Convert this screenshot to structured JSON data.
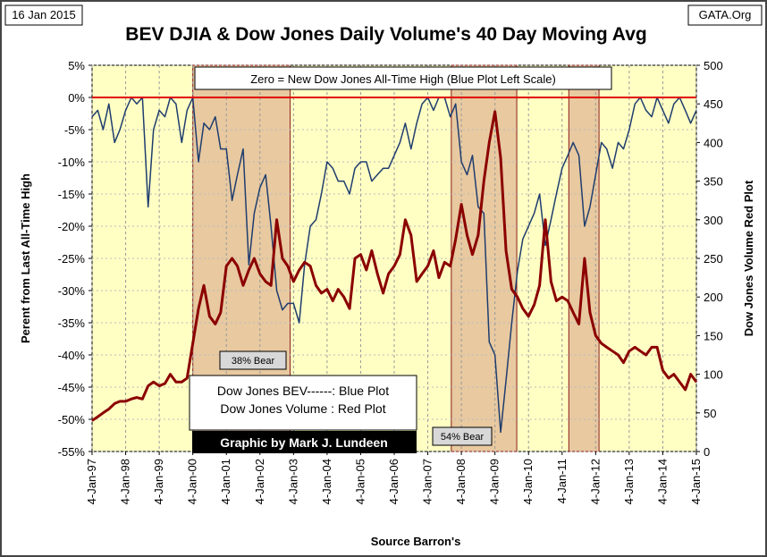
{
  "chart_data": {
    "type": "line",
    "title": "BEV DJIA & Dow Jones Daily Volume's 40 Day Moving Avg",
    "date": "16 Jan 2015",
    "source_tag": "GATA.Org",
    "y_label": "Perent from Last All-Time High",
    "y2_label": "Dow Jones Volume  Red Plot",
    "x_label": "Source Barron's",
    "annotations": {
      "zero_note": "Zero = New Dow Jones  All-Time High (Blue Plot Left Scale)",
      "legend_blue": "Dow Jones BEV------: Blue Plot",
      "legend_red": "Dow Jones Volume : Red Plot",
      "credit": "Graphic by Mark J. Lundeen"
    },
    "bear_periods": [
      {
        "start": 2000.0,
        "end": 2002.9,
        "label": "38% Bear"
      },
      {
        "start": 2007.7,
        "end": 2009.65,
        "label": "54% Bear"
      },
      {
        "start": 2011.2,
        "end": 2012.1
      }
    ],
    "reference_line": {
      "value": 0,
      "color": "#e00000"
    },
    "grid": true,
    "xlim": [
      1997,
      2015
    ],
    "xticks": [
      {
        "value": 1997,
        "label": "4-Jan-97"
      },
      {
        "value": 1998,
        "label": "4-Jan-98"
      },
      {
        "value": 1999,
        "label": "4-Jan-99"
      },
      {
        "value": 2000,
        "label": "4-Jan-00"
      },
      {
        "value": 2001,
        "label": "4-Jan-01"
      },
      {
        "value": 2002,
        "label": "4-Jan-02"
      },
      {
        "value": 2003,
        "label": "4-Jan-03"
      },
      {
        "value": 2004,
        "label": "4-Jan-04"
      },
      {
        "value": 2005,
        "label": "4-Jan-05"
      },
      {
        "value": 2006,
        "label": "4-Jan-06"
      },
      {
        "value": 2007,
        "label": "4-Jan-07"
      },
      {
        "value": 2008,
        "label": "4-Jan-08"
      },
      {
        "value": 2009,
        "label": "4-Jan-09"
      },
      {
        "value": 2010,
        "label": "4-Jan-10"
      },
      {
        "value": 2011,
        "label": "4-Jan-11"
      },
      {
        "value": 2012,
        "label": "4-Jan-12"
      },
      {
        "value": 2013,
        "label": "4-Jan-13"
      },
      {
        "value": 2014,
        "label": "4-Jan-14"
      },
      {
        "value": 2015,
        "label": "4-Jan-15"
      }
    ],
    "ylim": [
      5,
      -55
    ],
    "yticks": [
      {
        "value": 5,
        "label": "5%"
      },
      {
        "value": 0,
        "label": "0%"
      },
      {
        "value": -5,
        "label": "-5%"
      },
      {
        "value": -10,
        "label": "-10%"
      },
      {
        "value": -15,
        "label": "-15%"
      },
      {
        "value": -20,
        "label": "-20%"
      },
      {
        "value": -25,
        "label": "-25%"
      },
      {
        "value": -30,
        "label": "-30%"
      },
      {
        "value": -35,
        "label": "-35%"
      },
      {
        "value": -40,
        "label": "-40%"
      },
      {
        "value": -45,
        "label": "-45%"
      },
      {
        "value": -50,
        "label": "-50%"
      },
      {
        "value": -55,
        "label": "-55%"
      }
    ],
    "y2lim": [
      500,
      0
    ],
    "y2ticks": [
      500,
      450,
      400,
      350,
      300,
      250,
      200,
      150,
      100,
      50,
      0
    ],
    "x": [
      1997,
      1997.17,
      1997.33,
      1997.5,
      1997.67,
      1997.83,
      1998,
      1998.17,
      1998.33,
      1998.5,
      1998.67,
      1998.83,
      1999,
      1999.17,
      1999.33,
      1999.5,
      1999.67,
      1999.83,
      2000,
      2000.17,
      2000.33,
      2000.5,
      2000.67,
      2000.83,
      2001,
      2001.17,
      2001.33,
      2001.5,
      2001.67,
      2001.83,
      2002,
      2002.17,
      2002.33,
      2002.5,
      2002.67,
      2002.83,
      2003,
      2003.17,
      2003.33,
      2003.5,
      2003.67,
      2003.83,
      2004,
      2004.17,
      2004.33,
      2004.5,
      2004.67,
      2004.83,
      2005,
      2005.17,
      2005.33,
      2005.5,
      2005.67,
      2005.83,
      2006,
      2006.17,
      2006.33,
      2006.5,
      2006.67,
      2006.83,
      2007,
      2007.17,
      2007.33,
      2007.5,
      2007.67,
      2007.83,
      2008,
      2008.17,
      2008.33,
      2008.5,
      2008.67,
      2008.83,
      2009,
      2009.17,
      2009.33,
      2009.5,
      2009.67,
      2009.83,
      2010,
      2010.17,
      2010.33,
      2010.5,
      2010.67,
      2010.83,
      2011,
      2011.17,
      2011.33,
      2011.5,
      2011.67,
      2011.83,
      2012,
      2012.17,
      2012.33,
      2012.5,
      2012.67,
      2012.83,
      2013,
      2013.17,
      2013.33,
      2013.5,
      2013.67,
      2013.83,
      2014,
      2014.17,
      2014.33,
      2014.5,
      2014.67,
      2014.83,
      2015
    ],
    "series": [
      {
        "name": "Dow Jones BEV",
        "color": "#1f3d6e",
        "axis": "y",
        "values": [
          -3,
          -2,
          -5,
          -1,
          -7,
          -5,
          -2,
          0,
          -1,
          0,
          -17,
          -5,
          -2,
          -3,
          0,
          -1,
          -7,
          -2,
          0,
          -10,
          -4,
          -5,
          -3,
          -8,
          -8,
          -16,
          -12,
          -8,
          -26,
          -18,
          -14,
          -12,
          -20,
          -30,
          -33,
          -32,
          -32,
          -35,
          -26,
          -20,
          -19,
          -15,
          -10,
          -11,
          -13,
          -13,
          -15,
          -11,
          -10,
          -10,
          -13,
          -12,
          -11,
          -11,
          -9,
          -7,
          -4,
          -8,
          -4,
          -1,
          0,
          -2,
          0,
          0,
          -3,
          -1,
          -10,
          -12,
          -9,
          -17,
          -18,
          -38,
          -40,
          -52,
          -44,
          -35,
          -27,
          -22,
          -20,
          -18,
          -15,
          -23,
          -19,
          -15,
          -11,
          -9,
          -7,
          -9,
          -20,
          -17,
          -12,
          -7,
          -8,
          -11,
          -7,
          -8,
          -5,
          -1,
          0,
          -2,
          -3,
          0,
          -2,
          -4,
          -1,
          0,
          -2,
          -4,
          -2
        ]
      },
      {
        "name": "Dow Jones Volume",
        "color": "#8b0000",
        "axis": "y2",
        "values": [
          40,
          45,
          50,
          55,
          62,
          65,
          65,
          68,
          70,
          68,
          85,
          90,
          85,
          88,
          100,
          90,
          90,
          95,
          140,
          185,
          215,
          175,
          165,
          180,
          240,
          250,
          240,
          215,
          235,
          250,
          230,
          220,
          215,
          300,
          250,
          240,
          220,
          235,
          245,
          240,
          215,
          205,
          210,
          195,
          210,
          200,
          185,
          250,
          255,
          235,
          260,
          230,
          205,
          230,
          240,
          255,
          300,
          280,
          220,
          230,
          240,
          260,
          225,
          245,
          240,
          275,
          320,
          280,
          255,
          280,
          350,
          400,
          440,
          380,
          260,
          210,
          200,
          185,
          175,
          190,
          215,
          300,
          220,
          195,
          200,
          195,
          180,
          165,
          250,
          180,
          150,
          140,
          135,
          130,
          125,
          115,
          130,
          135,
          130,
          125,
          135,
          135,
          105,
          95,
          100,
          90,
          80,
          100,
          90
        ]
      }
    ]
  }
}
